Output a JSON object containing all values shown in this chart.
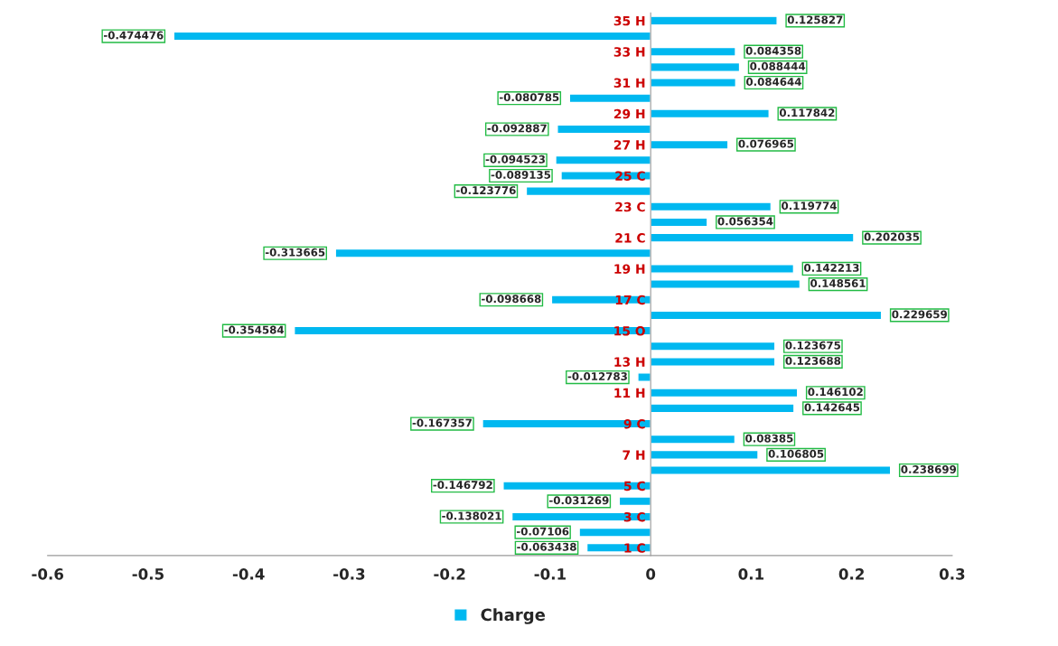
{
  "chart_data": {
    "type": "bar",
    "orientation": "horizontal",
    "categories": [
      "35 H",
      null,
      "33 H",
      null,
      "31 H",
      null,
      "29 H",
      null,
      "27 H",
      null,
      "25 C",
      null,
      "23 C",
      null,
      "21 C",
      null,
      "19 H",
      null,
      "17 C",
      null,
      "15 O",
      null,
      "13 H",
      null,
      "11 H",
      null,
      "9 C",
      null,
      "7 H",
      null,
      "5 C",
      null,
      "3 C",
      null,
      "1 C"
    ],
    "series": [
      {
        "name": "Charge",
        "color": "#00b8f0",
        "values": [
          0.125827,
          -0.474476,
          0.084358,
          0.088444,
          0.084644,
          -0.080785,
          0.117842,
          -0.092887,
          0.076965,
          -0.094523,
          -0.089135,
          -0.123776,
          0.119774,
          0.056354,
          0.202035,
          -0.313665,
          0.142213,
          0.148561,
          -0.098668,
          0.229659,
          -0.354584,
          0.123675,
          0.123688,
          -0.012783,
          0.146102,
          0.142645,
          -0.167357,
          0.08385,
          0.106805,
          0.238699,
          -0.146792,
          -0.031269,
          -0.138021,
          -0.07106,
          -0.063438
        ]
      }
    ],
    "xlim": [
      -0.6,
      0.3
    ],
    "xticks": [
      -0.6,
      -0.5,
      -0.4,
      -0.3,
      -0.2,
      -0.1,
      0,
      0.1,
      0.2,
      0.3
    ],
    "data_labels": true,
    "legend": "bottom",
    "grid": false
  }
}
